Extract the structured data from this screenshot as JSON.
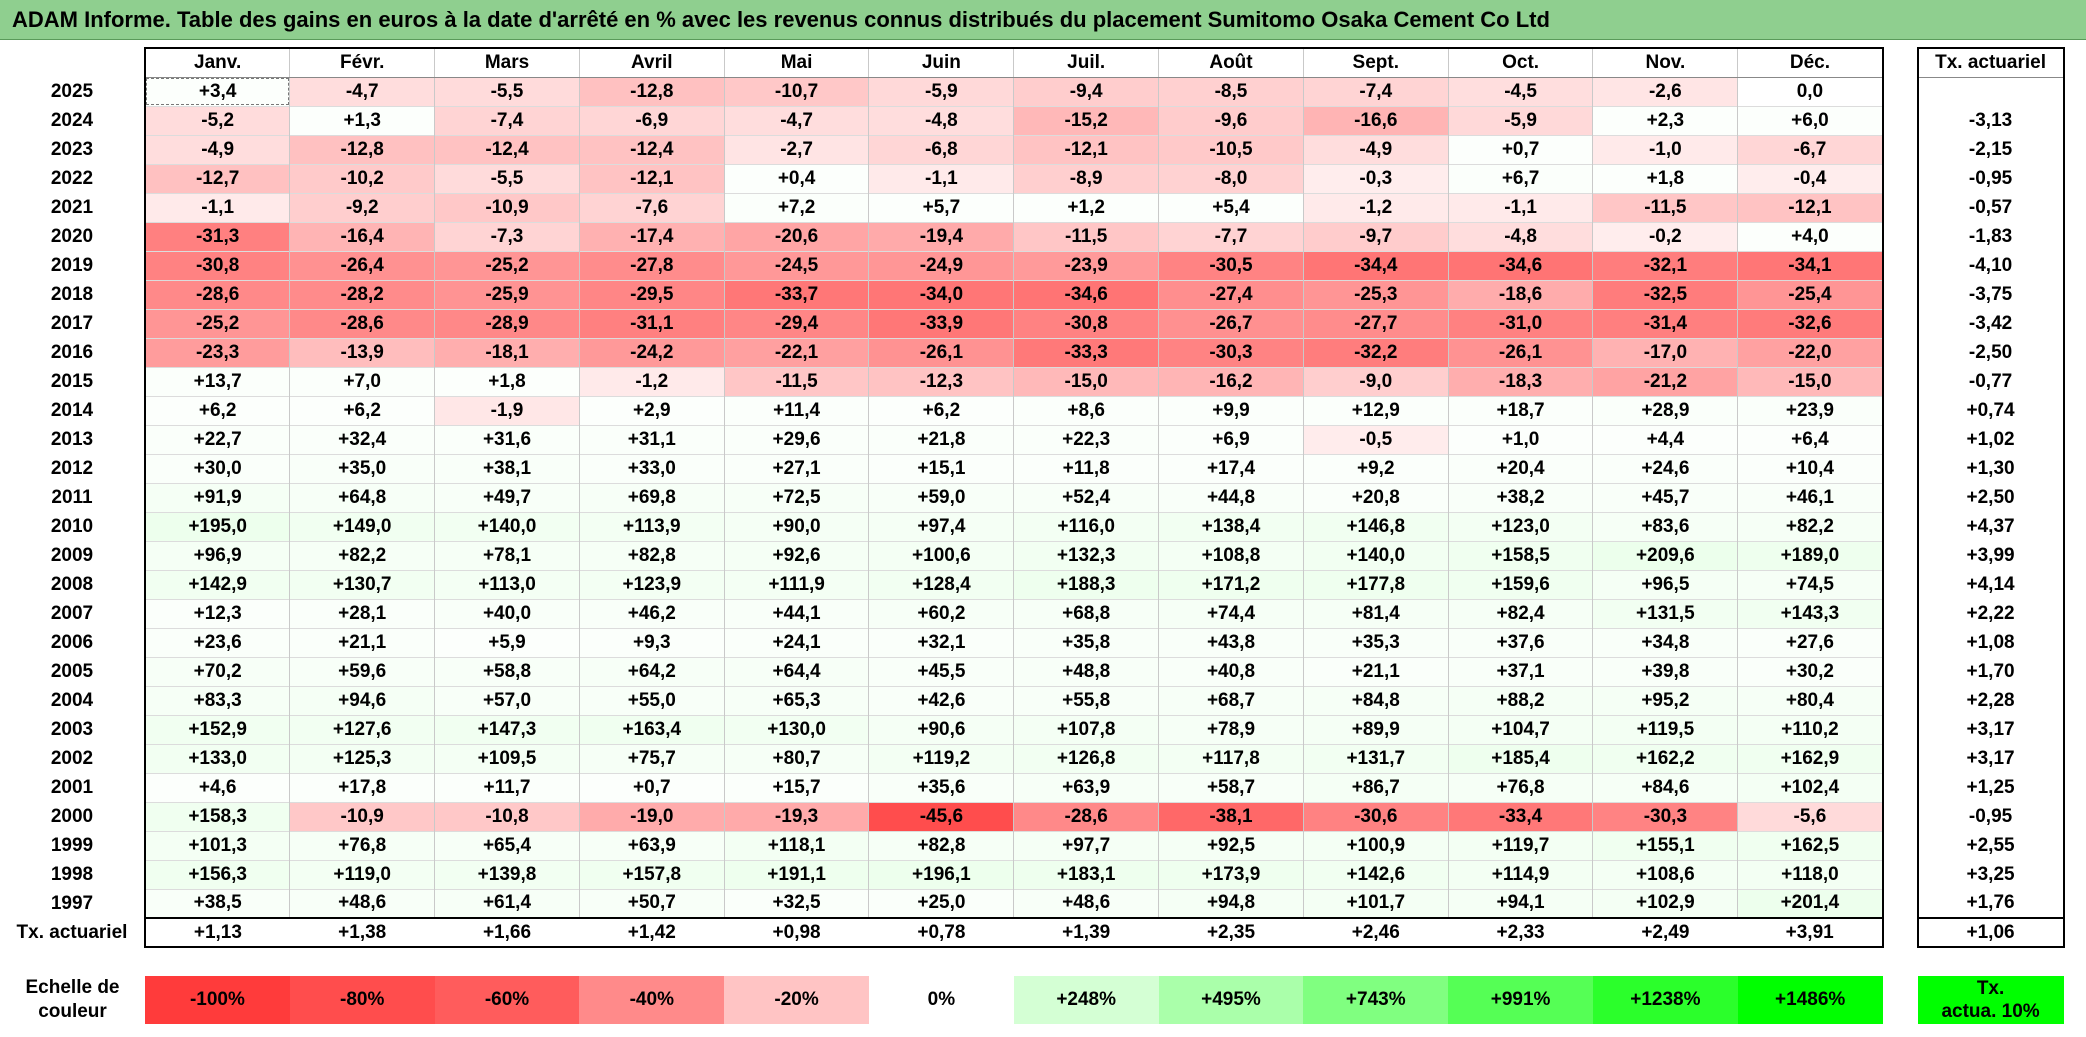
{
  "title": "ADAM Informe. Table des gains en euros à la date d'arrêté en % avec les revenus connus distribués du placement Sumitomo Osaka Cement Co Ltd",
  "months": [
    "Janv.",
    "Févr.",
    "Mars",
    "Avril",
    "Mai",
    "Juin",
    "Juil.",
    "Août",
    "Sept.",
    "Oct.",
    "Nov.",
    "Déc."
  ],
  "tx_header": "Tx. actuariel",
  "rows": [
    {
      "year": "2025",
      "values": [
        "+3,4",
        "-4,7",
        "-5,5",
        "-12,8",
        "-10,7",
        "-5,9",
        "-9,4",
        "-8,5",
        "-7,4",
        "-4,5",
        "-2,6",
        "0,0"
      ],
      "tx": ""
    },
    {
      "year": "2024",
      "values": [
        "-5,2",
        "+1,3",
        "-7,4",
        "-6,9",
        "-4,7",
        "-4,8",
        "-15,2",
        "-9,6",
        "-16,6",
        "-5,9",
        "+2,3",
        "+6,0"
      ],
      "tx": "-3,13"
    },
    {
      "year": "2023",
      "values": [
        "-4,9",
        "-12,8",
        "-12,4",
        "-12,4",
        "-2,7",
        "-6,8",
        "-12,1",
        "-10,5",
        "-4,9",
        "+0,7",
        "-1,0",
        "-6,7"
      ],
      "tx": "-2,15"
    },
    {
      "year": "2022",
      "values": [
        "-12,7",
        "-10,2",
        "-5,5",
        "-12,1",
        "+0,4",
        "-1,1",
        "-8,9",
        "-8,0",
        "-0,3",
        "+6,7",
        "+1,8",
        "-0,4"
      ],
      "tx": "-0,95"
    },
    {
      "year": "2021",
      "values": [
        "-1,1",
        "-9,2",
        "-10,9",
        "-7,6",
        "+7,2",
        "+5,7",
        "+1,2",
        "+5,4",
        "-1,2",
        "-1,1",
        "-11,5",
        "-12,1"
      ],
      "tx": "-0,57"
    },
    {
      "year": "2020",
      "values": [
        "-31,3",
        "-16,4",
        "-7,3",
        "-17,4",
        "-20,6",
        "-19,4",
        "-11,5",
        "-7,7",
        "-9,7",
        "-4,8",
        "-0,2",
        "+4,0"
      ],
      "tx": "-1,83"
    },
    {
      "year": "2019",
      "values": [
        "-30,8",
        "-26,4",
        "-25,2",
        "-27,8",
        "-24,5",
        "-24,9",
        "-23,9",
        "-30,5",
        "-34,4",
        "-34,6",
        "-32,1",
        "-34,1"
      ],
      "tx": "-4,10"
    },
    {
      "year": "2018",
      "values": [
        "-28,6",
        "-28,2",
        "-25,9",
        "-29,5",
        "-33,7",
        "-34,0",
        "-34,6",
        "-27,4",
        "-25,3",
        "-18,6",
        "-32,5",
        "-25,4"
      ],
      "tx": "-3,75"
    },
    {
      "year": "2017",
      "values": [
        "-25,2",
        "-28,6",
        "-28,9",
        "-31,1",
        "-29,4",
        "-33,9",
        "-30,8",
        "-26,7",
        "-27,7",
        "-31,0",
        "-31,4",
        "-32,6"
      ],
      "tx": "-3,42"
    },
    {
      "year": "2016",
      "values": [
        "-23,3",
        "-13,9",
        "-18,1",
        "-24,2",
        "-22,1",
        "-26,1",
        "-33,3",
        "-30,3",
        "-32,2",
        "-26,1",
        "-17,0",
        "-22,0"
      ],
      "tx": "-2,50"
    },
    {
      "year": "2015",
      "values": [
        "+13,7",
        "+7,0",
        "+1,8",
        "-1,2",
        "-11,5",
        "-12,3",
        "-15,0",
        "-16,2",
        "-9,0",
        "-18,3",
        "-21,2",
        "-15,0"
      ],
      "tx": "-0,77"
    },
    {
      "year": "2014",
      "values": [
        "+6,2",
        "+6,2",
        "-1,9",
        "+2,9",
        "+11,4",
        "+6,2",
        "+8,6",
        "+9,9",
        "+12,9",
        "+18,7",
        "+28,9",
        "+23,9"
      ],
      "tx": "+0,74"
    },
    {
      "year": "2013",
      "values": [
        "+22,7",
        "+32,4",
        "+31,6",
        "+31,1",
        "+29,6",
        "+21,8",
        "+22,3",
        "+6,9",
        "-0,5",
        "+1,0",
        "+4,4",
        "+6,4"
      ],
      "tx": "+1,02"
    },
    {
      "year": "2012",
      "values": [
        "+30,0",
        "+35,0",
        "+38,1",
        "+33,0",
        "+27,1",
        "+15,1",
        "+11,8",
        "+17,4",
        "+9,2",
        "+20,4",
        "+24,6",
        "+10,4"
      ],
      "tx": "+1,30"
    },
    {
      "year": "2011",
      "values": [
        "+91,9",
        "+64,8",
        "+49,7",
        "+69,8",
        "+72,5",
        "+59,0",
        "+52,4",
        "+44,8",
        "+20,8",
        "+38,2",
        "+45,7",
        "+46,1"
      ],
      "tx": "+2,50"
    },
    {
      "year": "2010",
      "values": [
        "+195,0",
        "+149,0",
        "+140,0",
        "+113,9",
        "+90,0",
        "+97,4",
        "+116,0",
        "+138,4",
        "+146,8",
        "+123,0",
        "+83,6",
        "+82,2"
      ],
      "tx": "+4,37"
    },
    {
      "year": "2009",
      "values": [
        "+96,9",
        "+82,2",
        "+78,1",
        "+82,8",
        "+92,6",
        "+100,6",
        "+132,3",
        "+108,8",
        "+140,0",
        "+158,5",
        "+209,6",
        "+189,0"
      ],
      "tx": "+3,99"
    },
    {
      "year": "2008",
      "values": [
        "+142,9",
        "+130,7",
        "+113,0",
        "+123,9",
        "+111,9",
        "+128,4",
        "+188,3",
        "+171,2",
        "+177,8",
        "+159,6",
        "+96,5",
        "+74,5"
      ],
      "tx": "+4,14"
    },
    {
      "year": "2007",
      "values": [
        "+12,3",
        "+28,1",
        "+40,0",
        "+46,2",
        "+44,1",
        "+60,2",
        "+68,8",
        "+74,4",
        "+81,4",
        "+82,4",
        "+131,5",
        "+143,3"
      ],
      "tx": "+2,22"
    },
    {
      "year": "2006",
      "values": [
        "+23,6",
        "+21,1",
        "+5,9",
        "+9,3",
        "+24,1",
        "+32,1",
        "+35,8",
        "+43,8",
        "+35,3",
        "+37,6",
        "+34,8",
        "+27,6"
      ],
      "tx": "+1,08"
    },
    {
      "year": "2005",
      "values": [
        "+70,2",
        "+59,6",
        "+58,8",
        "+64,2",
        "+64,4",
        "+45,5",
        "+48,8",
        "+40,8",
        "+21,1",
        "+37,1",
        "+39,8",
        "+30,2"
      ],
      "tx": "+1,70"
    },
    {
      "year": "2004",
      "values": [
        "+83,3",
        "+94,6",
        "+57,0",
        "+55,0",
        "+65,3",
        "+42,6",
        "+55,8",
        "+68,7",
        "+84,8",
        "+88,2",
        "+95,2",
        "+80,4"
      ],
      "tx": "+2,28"
    },
    {
      "year": "2003",
      "values": [
        "+152,9",
        "+127,6",
        "+147,3",
        "+163,4",
        "+130,0",
        "+90,6",
        "+107,8",
        "+78,9",
        "+89,9",
        "+104,7",
        "+119,5",
        "+110,2"
      ],
      "tx": "+3,17"
    },
    {
      "year": "2002",
      "values": [
        "+133,0",
        "+125,3",
        "+109,5",
        "+75,7",
        "+80,7",
        "+119,2",
        "+126,8",
        "+117,8",
        "+131,7",
        "+185,4",
        "+162,2",
        "+162,9"
      ],
      "tx": "+3,17"
    },
    {
      "year": "2001",
      "values": [
        "+4,6",
        "+17,8",
        "+11,7",
        "+0,7",
        "+15,7",
        "+35,6",
        "+63,9",
        "+58,7",
        "+86,7",
        "+76,8",
        "+84,6",
        "+102,4"
      ],
      "tx": "+1,25"
    },
    {
      "year": "2000",
      "values": [
        "+158,3",
        "-10,9",
        "-10,8",
        "-19,0",
        "-19,3",
        "-45,6",
        "-28,6",
        "-38,1",
        "-30,6",
        "-33,4",
        "-30,3",
        "-5,6"
      ],
      "tx": "-0,95"
    },
    {
      "year": "1999",
      "values": [
        "+101,3",
        "+76,8",
        "+65,4",
        "+63,9",
        "+118,1",
        "+82,8",
        "+97,7",
        "+92,5",
        "+100,9",
        "+119,7",
        "+155,1",
        "+162,5"
      ],
      "tx": "+2,55"
    },
    {
      "year": "1998",
      "values": [
        "+156,3",
        "+119,0",
        "+139,8",
        "+157,8",
        "+191,1",
        "+196,1",
        "+183,1",
        "+173,9",
        "+142,6",
        "+114,9",
        "+108,6",
        "+118,0"
      ],
      "tx": "+3,25"
    },
    {
      "year": "1997",
      "values": [
        "+38,5",
        "+48,6",
        "+61,4",
        "+50,7",
        "+32,5",
        "+25,0",
        "+48,6",
        "+94,8",
        "+101,7",
        "+94,1",
        "+102,9",
        "+201,4"
      ],
      "tx": "+1,76"
    }
  ],
  "summary": {
    "label": "Tx. actuariel",
    "values": [
      "+1,13",
      "+1,38",
      "+1,66",
      "+1,42",
      "+0,98",
      "+0,78",
      "+1,39",
      "+2,35",
      "+2,46",
      "+2,33",
      "+2,49",
      "+3,91"
    ],
    "tx": "+1,06"
  },
  "scale": {
    "label_line1": "Echelle de",
    "label_line2": "couleur",
    "items": [
      {
        "label": "-100%",
        "color": "#ff3b3b"
      },
      {
        "label": "-80%",
        "color": "#ff4d4d"
      },
      {
        "label": "-60%",
        "color": "#ff5c5c"
      },
      {
        "label": "-40%",
        "color": "#ff8a8a"
      },
      {
        "label": "-20%",
        "color": "#ffc4c4"
      },
      {
        "label": "0%",
        "color": "#ffffff"
      },
      {
        "label": "+248%",
        "color": "#d4ffd4"
      },
      {
        "label": "+495%",
        "color": "#aaffaa"
      },
      {
        "label": "+743%",
        "color": "#80ff80"
      },
      {
        "label": "+991%",
        "color": "#55ff55"
      },
      {
        "label": "+1238%",
        "color": "#2bff2b"
      },
      {
        "label": "+1486%",
        "color": "#00ff00"
      }
    ],
    "tx_line1": "Tx.",
    "tx_line2": "actua. 10%",
    "tx_color": "#00ff00"
  },
  "colors": {
    "title_bg": "#8fcf8f",
    "negative_max": "#ff3b3b",
    "positive_tint": "#eaffea"
  }
}
